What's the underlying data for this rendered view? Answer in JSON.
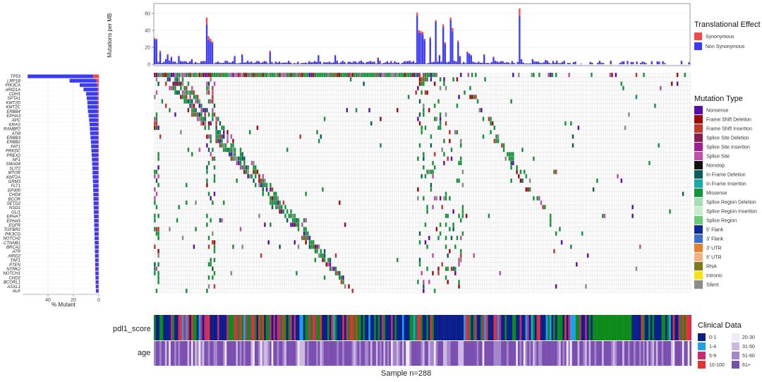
{
  "chart_data": [
    {
      "type": "bar",
      "panel": "tmb",
      "ylabel": "Mutations per MB",
      "ylim": [
        0,
        70
      ],
      "yticks": [
        0,
        20,
        40,
        60
      ],
      "n_samples": 288,
      "series": [
        {
          "name": "Synonymous",
          "color": "#F04A4A"
        },
        {
          "name": "Non Synonymous",
          "color": "#3B3BF5"
        }
      ],
      "peaks": [
        {
          "sample": 0,
          "total": 31,
          "syn": 2
        },
        {
          "sample": 1,
          "total": 30,
          "syn": 1
        },
        {
          "sample": 3,
          "total": 16,
          "syn": 2
        },
        {
          "sample": 6,
          "total": 6,
          "syn": 0
        },
        {
          "sample": 7,
          "total": 12,
          "syn": 1
        },
        {
          "sample": 9,
          "total": 9,
          "syn": 1
        },
        {
          "sample": 13,
          "total": 10,
          "syn": 1
        },
        {
          "sample": 20,
          "total": 6,
          "syn": 0
        },
        {
          "sample": 28,
          "total": 55,
          "syn": 8
        },
        {
          "sample": 29,
          "total": 33,
          "syn": 4
        },
        {
          "sample": 30,
          "total": 30,
          "syn": 3
        },
        {
          "sample": 31,
          "total": 27,
          "syn": 2
        },
        {
          "sample": 43,
          "total": 10,
          "syn": 1
        },
        {
          "sample": 47,
          "total": 12,
          "syn": 1
        },
        {
          "sample": 62,
          "total": 16,
          "syn": 2
        },
        {
          "sample": 88,
          "total": 11,
          "syn": 1
        },
        {
          "sample": 97,
          "total": 11,
          "syn": 1
        },
        {
          "sample": 120,
          "total": 8,
          "syn": 1
        },
        {
          "sample": 141,
          "total": 61,
          "syn": 4
        },
        {
          "sample": 142,
          "total": 40,
          "syn": 3
        },
        {
          "sample": 143,
          "total": 39,
          "syn": 2
        },
        {
          "sample": 144,
          "total": 38,
          "syn": 3
        },
        {
          "sample": 145,
          "total": 30,
          "syn": 2
        },
        {
          "sample": 148,
          "total": 32,
          "syn": 2
        },
        {
          "sample": 151,
          "total": 52,
          "syn": 2
        },
        {
          "sample": 153,
          "total": 11,
          "syn": 1
        },
        {
          "sample": 155,
          "total": 47,
          "syn": 3
        },
        {
          "sample": 156,
          "total": 26,
          "syn": 2
        },
        {
          "sample": 159,
          "total": 55,
          "syn": 3
        },
        {
          "sample": 160,
          "total": 43,
          "syn": 4
        },
        {
          "sample": 163,
          "total": 28,
          "syn": 2
        },
        {
          "sample": 164,
          "total": 10,
          "syn": 1
        },
        {
          "sample": 168,
          "total": 15,
          "syn": 1
        },
        {
          "sample": 169,
          "total": 13,
          "syn": 1
        },
        {
          "sample": 170,
          "total": 11,
          "syn": 1
        },
        {
          "sample": 177,
          "total": 12,
          "syn": 1
        },
        {
          "sample": 182,
          "total": 9,
          "syn": 1
        },
        {
          "sample": 196,
          "total": 66,
          "syn": 9
        },
        {
          "sample": 197,
          "total": 6,
          "syn": 0
        },
        {
          "sample": 203,
          "total": 6,
          "syn": 0
        },
        {
          "sample": 210,
          "total": 5,
          "syn": 0
        }
      ],
      "baseline_max": 4,
      "sparse_after": 220
    },
    {
      "type": "bar",
      "panel": "gene-frequency",
      "orientation": "horizontal",
      "xlabel": "% Mutant",
      "xticks": [
        40,
        20,
        0
      ],
      "xlim": [
        60,
        0
      ],
      "genes": [
        "TP53",
        "LRP1B",
        "PIK3CA",
        "ARID1A",
        "CDH1",
        "SPTA1",
        "KMT2D",
        "KMT2C",
        "ERBB4",
        "EPHA3",
        "APC",
        "KRAS",
        "RANBP2",
        "ATM",
        "ERBB3",
        "ERBB2",
        "FAT1",
        "PRKDC",
        "PREX2",
        "NF1",
        "SMAD4",
        "SLIT2",
        "MTOR",
        "KMT2A",
        "GRM3",
        "FLT1",
        "EP300",
        "CHD4",
        "BCOR",
        "SETD2",
        "NSD1",
        "GLI1",
        "EPHA7",
        "EPHA5",
        "EGFR",
        "TGFBR2",
        "PIK3CG",
        "NOTCH2",
        "CTNNB1",
        "BRCA2",
        "ATR",
        "ARID2",
        "TAF1",
        "PTEN",
        "NTRK2",
        "NOTCH1",
        "CHD2",
        "BCORL1",
        "ASXL1",
        "ALK"
      ],
      "values": [
        56,
        23,
        15,
        12,
        10,
        9.5,
        9,
        8.8,
        8.5,
        8,
        7.6,
        7.2,
        7,
        6.8,
        6.5,
        6.2,
        6,
        5.8,
        5.6,
        5.4,
        5.2,
        5,
        4.9,
        4.8,
        4.6,
        4.5,
        4.4,
        4.3,
        4.2,
        4.1,
        4,
        3.9,
        3.8,
        3.7,
        3.6,
        3.5,
        3.4,
        3.3,
        3.2,
        3.1,
        3.05,
        3,
        2.9,
        2.85,
        2.8,
        2.7,
        2.6,
        2.5,
        2.4,
        2.3
      ],
      "syn_fraction": 0.08
    },
    {
      "type": "heatmap",
      "panel": "oncoplot",
      "n_samples": 288,
      "n_genes": 50
    },
    {
      "type": "heatmap",
      "panel": "clinical",
      "tracks": [
        "pdl1_score",
        "age"
      ],
      "xlabel": "Sample n=288"
    }
  ],
  "legends": {
    "translational": {
      "title": "Translational Effect",
      "items": [
        {
          "label": "Synonymous",
          "color": "#F04A4A"
        },
        {
          "label": "Non Synonymous",
          "color": "#3B3BF5"
        }
      ]
    },
    "mutation_type": {
      "title": "Mutation Type",
      "items": [
        {
          "label": "Nonsense",
          "color": "#5B0DA8"
        },
        {
          "label": "Frame Shift Deletion",
          "color": "#9E0A0A"
        },
        {
          "label": "Frame Shift Insertion",
          "color": "#C0392B"
        },
        {
          "label": "Splice Site Deletion",
          "color": "#8E1C50"
        },
        {
          "label": "Splice Site Insertion",
          "color": "#A0208F"
        },
        {
          "label": "Splice Site",
          "color": "#C34FA8"
        },
        {
          "label": "Nonstop",
          "color": "#111111"
        },
        {
          "label": "In Frame Deletion",
          "color": "#0B5E5E"
        },
        {
          "label": "In Frame Insertion",
          "color": "#1AA8A8"
        },
        {
          "label": "Missense",
          "color": "#13963A"
        },
        {
          "label": "Splice Region Deletion",
          "color": "#A5DEB2"
        },
        {
          "label": "Splice Region Insertion",
          "color": "#C5ECCB"
        },
        {
          "label": "Splice Region",
          "color": "#6CCB79"
        },
        {
          "label": "5' Flank",
          "color": "#0A2A9C"
        },
        {
          "label": "3' Flank",
          "color": "#3D6FC6"
        },
        {
          "label": "3' UTR",
          "color": "#E8822A"
        },
        {
          "label": "5' UTR",
          "color": "#F4B183"
        },
        {
          "label": "RNA",
          "color": "#7D7A1A"
        },
        {
          "label": "Intronic",
          "color": "#F5E11C"
        },
        {
          "label": "Silent",
          "color": "#8C8C8C"
        }
      ]
    },
    "clinical": {
      "title": "Clinical Data",
      "pdl1": [
        {
          "label": "0-1",
          "color": "#0A1E8C"
        },
        {
          "label": "1-4",
          "color": "#1E9FE6"
        },
        {
          "label": "5-9",
          "color": "#C72A6E"
        },
        {
          "label": "10-100",
          "color": "#E8302E"
        }
      ],
      "age": [
        {
          "label": "20-30",
          "color": "#F1EAF7"
        },
        {
          "label": "31-50",
          "color": "#CDB8E2"
        },
        {
          "label": "51-60",
          "color": "#A486CC"
        },
        {
          "label": "61+",
          "color": "#7B4FB0"
        }
      ],
      "pdl1_other": "#0C8A1A"
    }
  }
}
